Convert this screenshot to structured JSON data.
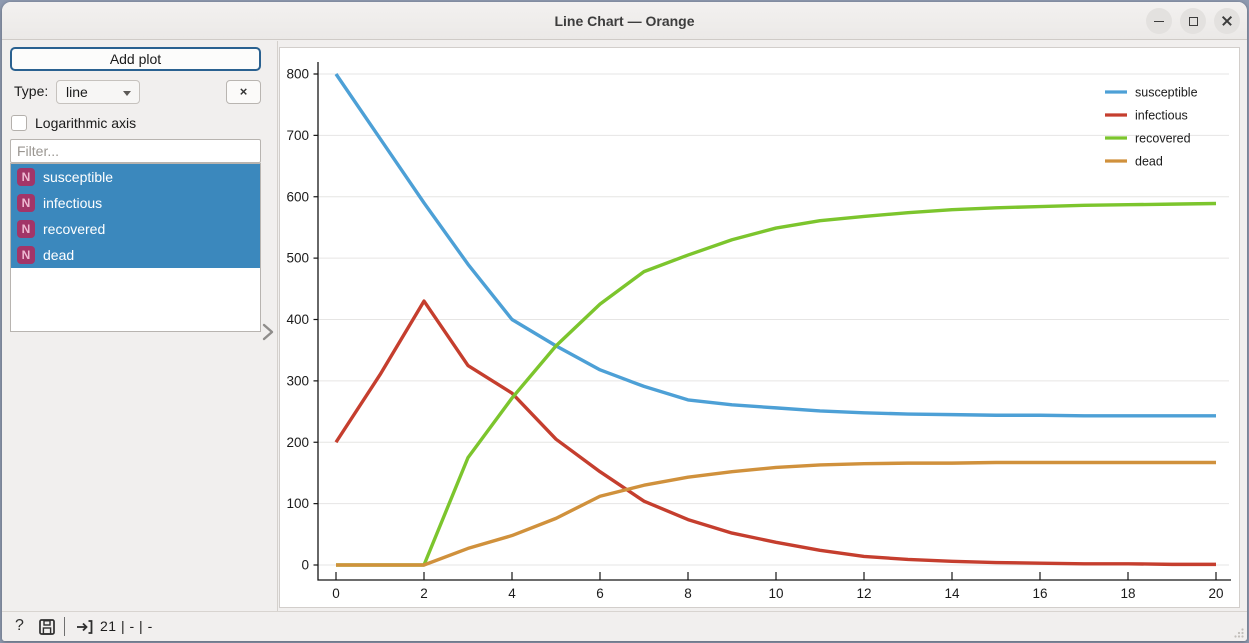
{
  "window": {
    "title": "Line Chart — Orange",
    "controls": [
      "minimize",
      "maximize",
      "close"
    ]
  },
  "sidebar": {
    "add_plot_label": "Add plot",
    "type_label": "Type:",
    "type_value": "line",
    "remove_plot_label": "×",
    "log_axis_label": "Logarithmic axis",
    "log_axis_checked": false,
    "filter_placeholder": "Filter...",
    "badge_color": "#a23568",
    "badge_text_color": "#eeb9d2",
    "selection_color": "#3b88bd",
    "variables": [
      {
        "badge": "N",
        "name": "susceptible",
        "selected": true
      },
      {
        "badge": "N",
        "name": "infectious",
        "selected": true
      },
      {
        "badge": "N",
        "name": "recovered",
        "selected": true
      },
      {
        "badge": "N",
        "name": "dead",
        "selected": true
      }
    ]
  },
  "statusbar": {
    "help_glyph": "?",
    "input_summary": "21 | - | -"
  },
  "chart_data": {
    "type": "line",
    "title": "",
    "xlabel": "",
    "ylabel": "",
    "x": [
      0,
      1,
      2,
      3,
      4,
      5,
      6,
      7,
      8,
      9,
      10,
      11,
      12,
      13,
      14,
      15,
      16,
      17,
      18,
      19,
      20
    ],
    "series": [
      {
        "name": "susceptible",
        "color": "#4da0d6",
        "values": [
          800,
          695,
          590,
          490,
          400,
          357,
          318,
          291,
          269,
          261,
          256,
          251,
          248,
          246,
          245,
          244,
          244,
          243,
          243,
          243,
          243
        ]
      },
      {
        "name": "infectious",
        "color": "#c53e2e",
        "values": [
          200,
          310,
          430,
          325,
          280,
          205,
          152,
          104,
          74,
          52,
          37,
          24,
          14,
          9,
          6,
          4,
          3,
          2,
          2,
          1,
          1
        ]
      },
      {
        "name": "recovered",
        "color": "#7cc52d",
        "values": [
          0,
          0,
          0,
          175,
          272,
          357,
          425,
          478,
          505,
          530,
          549,
          561,
          568,
          574,
          579,
          582,
          584,
          586,
          587,
          588,
          589
        ]
      },
      {
        "name": "dead",
        "color": "#d0913c",
        "values": [
          0,
          0,
          0,
          27,
          48,
          76,
          112,
          130,
          143,
          152,
          159,
          163,
          165,
          166,
          166,
          167,
          167,
          167,
          167,
          167,
          167
        ]
      }
    ],
    "xlim": [
      0,
      20
    ],
    "ylim": [
      0,
      800
    ],
    "x_ticks": [
      0,
      2,
      4,
      6,
      8,
      10,
      12,
      14,
      16,
      18,
      20
    ],
    "y_ticks": [
      0,
      100,
      200,
      300,
      400,
      500,
      600,
      700,
      800
    ],
    "grid": "horizontal",
    "legend_position": "top-right"
  }
}
